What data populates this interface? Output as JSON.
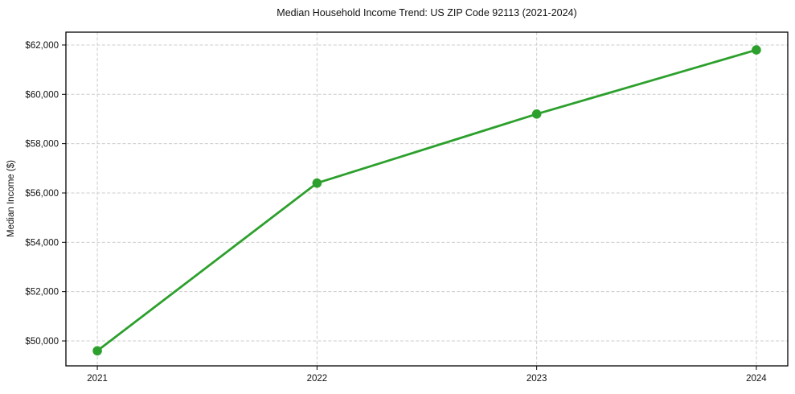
{
  "figure": {
    "background_color": "#ffffff",
    "frame_color": "#000000"
  },
  "chart_data": {
    "type": "line",
    "title": "Median Household Income Trend: US ZIP Code 92113 (2021-2024)",
    "xlabel": "",
    "ylabel": "Median Income ($)",
    "categories": [
      "2021",
      "2022",
      "2023",
      "2024"
    ],
    "x": [
      2021,
      2022,
      2023,
      2024
    ],
    "series": [
      {
        "name": "Median Household Income",
        "values": [
          49600,
          56400,
          59200,
          61800
        ],
        "color": "#2ca02c",
        "marker": "circle"
      }
    ],
    "y_ticks": [
      50000,
      52000,
      54000,
      56000,
      58000,
      60000,
      62000
    ],
    "y_tick_labels": [
      "$50,000",
      "$52,000",
      "$54,000",
      "$56,000",
      "$58,000",
      "$60,000",
      "$62,000"
    ],
    "xlim": [
      2020.857,
      2024.143
    ],
    "ylim": [
      48990,
      62520
    ],
    "grid": true,
    "grid_color": "#cccccc",
    "grid_style": "dashed",
    "tick_color": "#000000",
    "text_color": "#111111",
    "legend_position": "none"
  }
}
